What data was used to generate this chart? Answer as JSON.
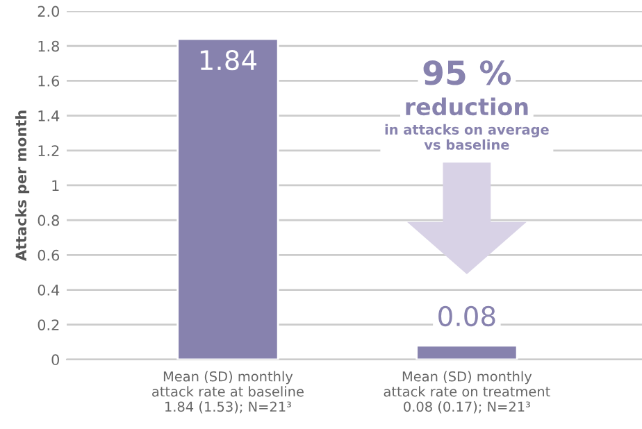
{
  "chart_data": {
    "type": "bar",
    "ylabel": "Attacks per month",
    "categories": [
      "Mean (SD) monthly\nattack rate at baseline\n1.84 (1.53); N=21³",
      "Mean (SD) monthly\nattack rate on treatment\n0.08 (0.17); N=21³"
    ],
    "values": [
      1.84,
      0.08
    ],
    "color": "#8782ae",
    "data_labels": true,
    "ylim": [
      0,
      2
    ],
    "yticks": [
      0,
      0.2,
      0.4,
      0.6,
      0.8,
      1,
      1.2,
      1.4,
      1.6,
      1.8,
      {
        "value": 2,
        "label": "2.0"
      }
    ],
    "grid": "y",
    "annotations": [
      "95 %",
      "reduction",
      "in attacks on average\nvs baseline"
    ]
  }
}
